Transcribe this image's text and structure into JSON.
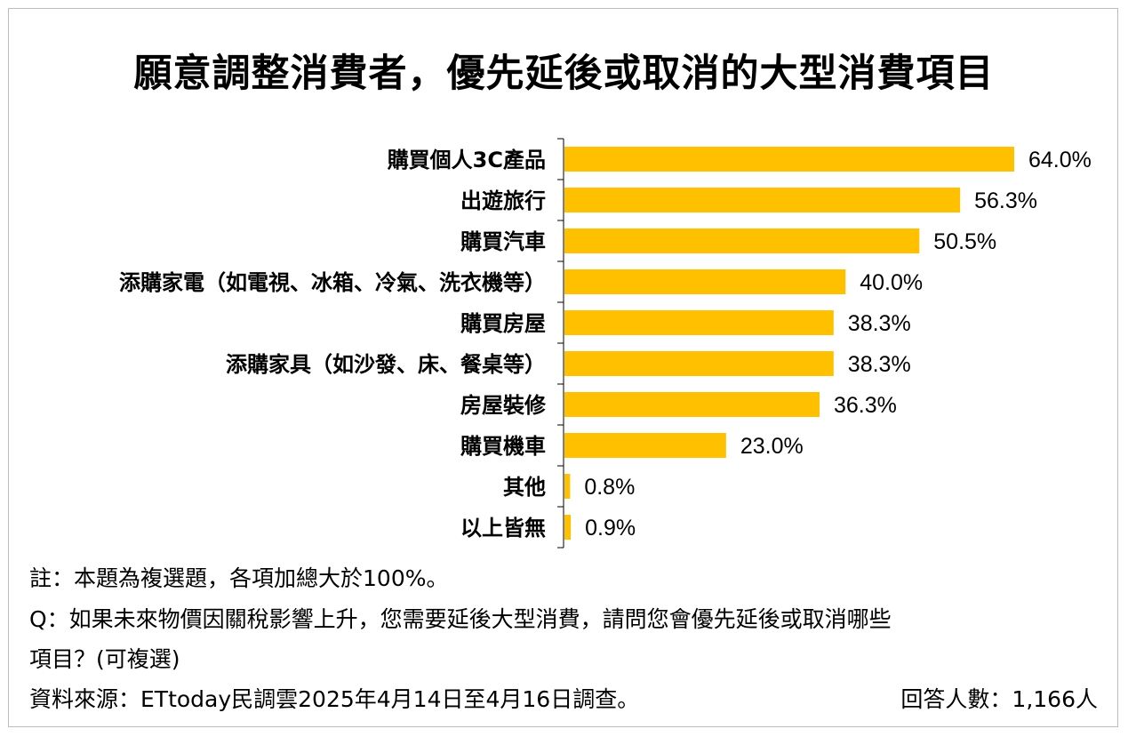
{
  "chart_data": {
    "type": "bar",
    "orientation": "horizontal",
    "title": "願意調整消費者，優先延後或取消的大型消費項目",
    "categories": [
      "購買個人3C產品",
      "出遊旅行",
      "購買汽車",
      "添購家電（如電視、冰箱、冷氣、洗衣機等）",
      "購買房屋",
      "添購家具（如沙發、床、餐桌等）",
      "房屋裝修",
      "購買機車",
      "其他",
      "以上皆無"
    ],
    "values": [
      64.0,
      56.3,
      50.5,
      40.0,
      38.3,
      38.3,
      36.3,
      23.0,
      0.8,
      0.9
    ],
    "value_labels": [
      "64.0%",
      "56.3%",
      "50.5%",
      "40.0%",
      "38.3%",
      "38.3%",
      "36.3%",
      "23.0%",
      "0.8%",
      "0.9%"
    ],
    "bar_color": "#FFC000",
    "xlim": [
      0,
      64
    ],
    "grid": false,
    "legend": "none"
  },
  "notes": {
    "note": "註：本題為複選題，各項加總大於100%。",
    "question_line1": "Q：如果未來物價因關稅影響上升，您需要延後大型消費，請問您會優先延後或取消哪些",
    "question_line2": "項目？(可複選)",
    "source": "資料來源：ETtoday民調雲2025年4月14日至4月16日調查。",
    "respondents": "回答人數：1,166人"
  }
}
